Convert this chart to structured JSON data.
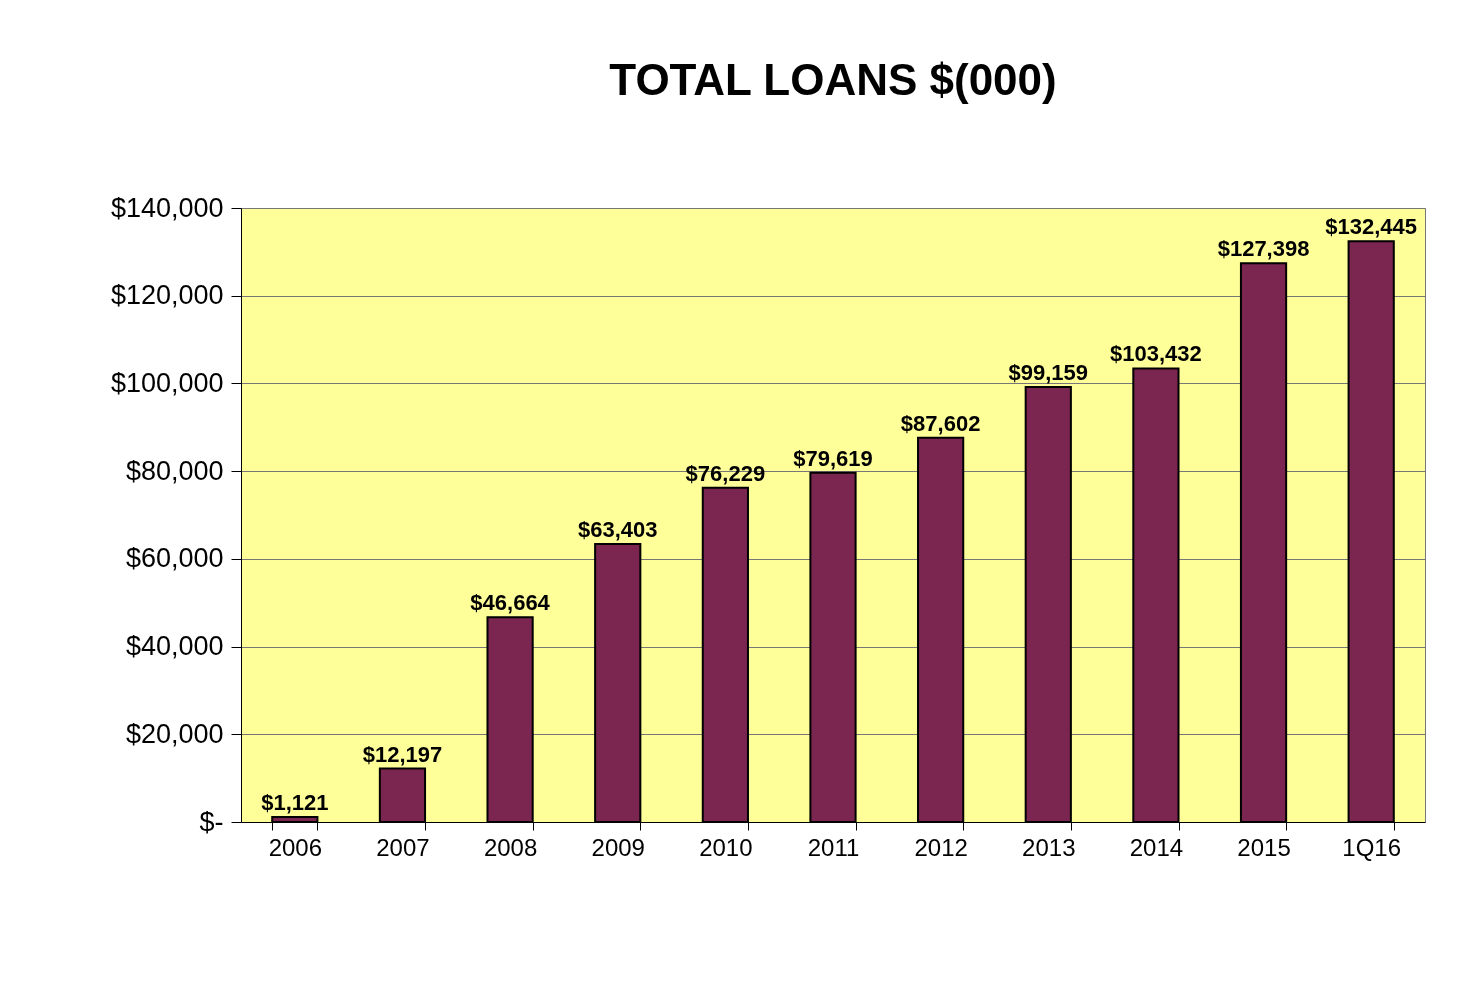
{
  "chart_data": {
    "type": "bar",
    "title": "TOTAL LOANS $(000)",
    "categories": [
      "2006",
      "2007",
      "2008",
      "2009",
      "2010",
      "2011",
      "2012",
      "2013",
      "2014",
      "2015",
      "1Q16"
    ],
    "values": [
      1121,
      12197,
      46664,
      63403,
      76229,
      79619,
      87602,
      99159,
      103432,
      127398,
      132445
    ],
    "value_labels": [
      "$1,121",
      "$12,197",
      "$46,664",
      "$63,403",
      "$76,229",
      "$79,619",
      "$87,602",
      "$99,159",
      "$103,432",
      "$127,398",
      "$132,445"
    ],
    "color": "#7a2650",
    "ylim": [
      0,
      140000
    ],
    "yticks": [
      {
        "value": 0,
        "label": "$-"
      },
      {
        "value": 20000,
        "label": "$20,000"
      },
      {
        "value": 40000,
        "label": "$40,000"
      },
      {
        "value": 60000,
        "label": "$60,000"
      },
      {
        "value": 80000,
        "label": "$80,000"
      },
      {
        "value": 100000,
        "label": "$100,000"
      },
      {
        "value": 120000,
        "label": "$120,000"
      },
      {
        "value": 140000,
        "label": "$140,000"
      }
    ],
    "grid": "y"
  }
}
